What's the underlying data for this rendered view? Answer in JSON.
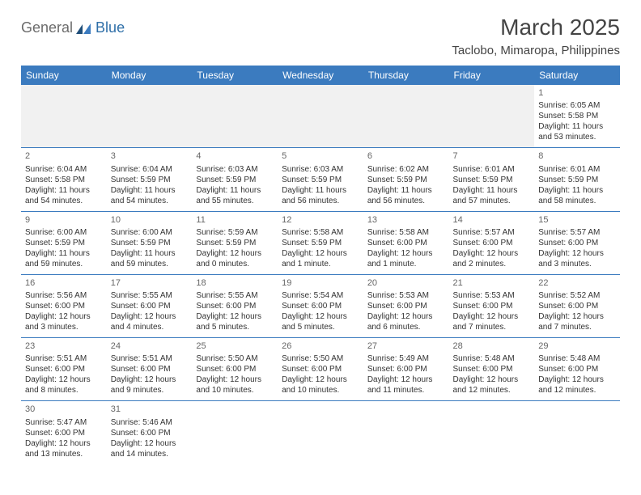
{
  "brand": {
    "part1": "General",
    "part2": "Blue"
  },
  "title": "March 2025",
  "location": "Taclobo, Mimaropa, Philippines",
  "dayNames": [
    "Sunday",
    "Monday",
    "Tuesday",
    "Wednesday",
    "Thursday",
    "Friday",
    "Saturday"
  ],
  "colors": {
    "header_bg": "#3b7bbf",
    "header_text": "#ffffff",
    "border": "#3b7bbf",
    "blank_bg": "#f1f1f1",
    "logo_gray": "#6b6b6b",
    "logo_blue": "#2f6fa8"
  },
  "weeks": [
    [
      null,
      null,
      null,
      null,
      null,
      null,
      {
        "n": "1",
        "sunrise": "Sunrise: 6:05 AM",
        "sunset": "Sunset: 5:58 PM",
        "daylight": "Daylight: 11 hours and 53 minutes."
      }
    ],
    [
      {
        "n": "2",
        "sunrise": "Sunrise: 6:04 AM",
        "sunset": "Sunset: 5:58 PM",
        "daylight": "Daylight: 11 hours and 54 minutes."
      },
      {
        "n": "3",
        "sunrise": "Sunrise: 6:04 AM",
        "sunset": "Sunset: 5:59 PM",
        "daylight": "Daylight: 11 hours and 54 minutes."
      },
      {
        "n": "4",
        "sunrise": "Sunrise: 6:03 AM",
        "sunset": "Sunset: 5:59 PM",
        "daylight": "Daylight: 11 hours and 55 minutes."
      },
      {
        "n": "5",
        "sunrise": "Sunrise: 6:03 AM",
        "sunset": "Sunset: 5:59 PM",
        "daylight": "Daylight: 11 hours and 56 minutes."
      },
      {
        "n": "6",
        "sunrise": "Sunrise: 6:02 AM",
        "sunset": "Sunset: 5:59 PM",
        "daylight": "Daylight: 11 hours and 56 minutes."
      },
      {
        "n": "7",
        "sunrise": "Sunrise: 6:01 AM",
        "sunset": "Sunset: 5:59 PM",
        "daylight": "Daylight: 11 hours and 57 minutes."
      },
      {
        "n": "8",
        "sunrise": "Sunrise: 6:01 AM",
        "sunset": "Sunset: 5:59 PM",
        "daylight": "Daylight: 11 hours and 58 minutes."
      }
    ],
    [
      {
        "n": "9",
        "sunrise": "Sunrise: 6:00 AM",
        "sunset": "Sunset: 5:59 PM",
        "daylight": "Daylight: 11 hours and 59 minutes."
      },
      {
        "n": "10",
        "sunrise": "Sunrise: 6:00 AM",
        "sunset": "Sunset: 5:59 PM",
        "daylight": "Daylight: 11 hours and 59 minutes."
      },
      {
        "n": "11",
        "sunrise": "Sunrise: 5:59 AM",
        "sunset": "Sunset: 5:59 PM",
        "daylight": "Daylight: 12 hours and 0 minutes."
      },
      {
        "n": "12",
        "sunrise": "Sunrise: 5:58 AM",
        "sunset": "Sunset: 5:59 PM",
        "daylight": "Daylight: 12 hours and 1 minute."
      },
      {
        "n": "13",
        "sunrise": "Sunrise: 5:58 AM",
        "sunset": "Sunset: 6:00 PM",
        "daylight": "Daylight: 12 hours and 1 minute."
      },
      {
        "n": "14",
        "sunrise": "Sunrise: 5:57 AM",
        "sunset": "Sunset: 6:00 PM",
        "daylight": "Daylight: 12 hours and 2 minutes."
      },
      {
        "n": "15",
        "sunrise": "Sunrise: 5:57 AM",
        "sunset": "Sunset: 6:00 PM",
        "daylight": "Daylight: 12 hours and 3 minutes."
      }
    ],
    [
      {
        "n": "16",
        "sunrise": "Sunrise: 5:56 AM",
        "sunset": "Sunset: 6:00 PM",
        "daylight": "Daylight: 12 hours and 3 minutes."
      },
      {
        "n": "17",
        "sunrise": "Sunrise: 5:55 AM",
        "sunset": "Sunset: 6:00 PM",
        "daylight": "Daylight: 12 hours and 4 minutes."
      },
      {
        "n": "18",
        "sunrise": "Sunrise: 5:55 AM",
        "sunset": "Sunset: 6:00 PM",
        "daylight": "Daylight: 12 hours and 5 minutes."
      },
      {
        "n": "19",
        "sunrise": "Sunrise: 5:54 AM",
        "sunset": "Sunset: 6:00 PM",
        "daylight": "Daylight: 12 hours and 5 minutes."
      },
      {
        "n": "20",
        "sunrise": "Sunrise: 5:53 AM",
        "sunset": "Sunset: 6:00 PM",
        "daylight": "Daylight: 12 hours and 6 minutes."
      },
      {
        "n": "21",
        "sunrise": "Sunrise: 5:53 AM",
        "sunset": "Sunset: 6:00 PM",
        "daylight": "Daylight: 12 hours and 7 minutes."
      },
      {
        "n": "22",
        "sunrise": "Sunrise: 5:52 AM",
        "sunset": "Sunset: 6:00 PM",
        "daylight": "Daylight: 12 hours and 7 minutes."
      }
    ],
    [
      {
        "n": "23",
        "sunrise": "Sunrise: 5:51 AM",
        "sunset": "Sunset: 6:00 PM",
        "daylight": "Daylight: 12 hours and 8 minutes."
      },
      {
        "n": "24",
        "sunrise": "Sunrise: 5:51 AM",
        "sunset": "Sunset: 6:00 PM",
        "daylight": "Daylight: 12 hours and 9 minutes."
      },
      {
        "n": "25",
        "sunrise": "Sunrise: 5:50 AM",
        "sunset": "Sunset: 6:00 PM",
        "daylight": "Daylight: 12 hours and 10 minutes."
      },
      {
        "n": "26",
        "sunrise": "Sunrise: 5:50 AM",
        "sunset": "Sunset: 6:00 PM",
        "daylight": "Daylight: 12 hours and 10 minutes."
      },
      {
        "n": "27",
        "sunrise": "Sunrise: 5:49 AM",
        "sunset": "Sunset: 6:00 PM",
        "daylight": "Daylight: 12 hours and 11 minutes."
      },
      {
        "n": "28",
        "sunrise": "Sunrise: 5:48 AM",
        "sunset": "Sunset: 6:00 PM",
        "daylight": "Daylight: 12 hours and 12 minutes."
      },
      {
        "n": "29",
        "sunrise": "Sunrise: 5:48 AM",
        "sunset": "Sunset: 6:00 PM",
        "daylight": "Daylight: 12 hours and 12 minutes."
      }
    ],
    [
      {
        "n": "30",
        "sunrise": "Sunrise: 5:47 AM",
        "sunset": "Sunset: 6:00 PM",
        "daylight": "Daylight: 12 hours and 13 minutes."
      },
      {
        "n": "31",
        "sunrise": "Sunrise: 5:46 AM",
        "sunset": "Sunset: 6:00 PM",
        "daylight": "Daylight: 12 hours and 14 minutes."
      },
      null,
      null,
      null,
      null,
      null
    ]
  ]
}
